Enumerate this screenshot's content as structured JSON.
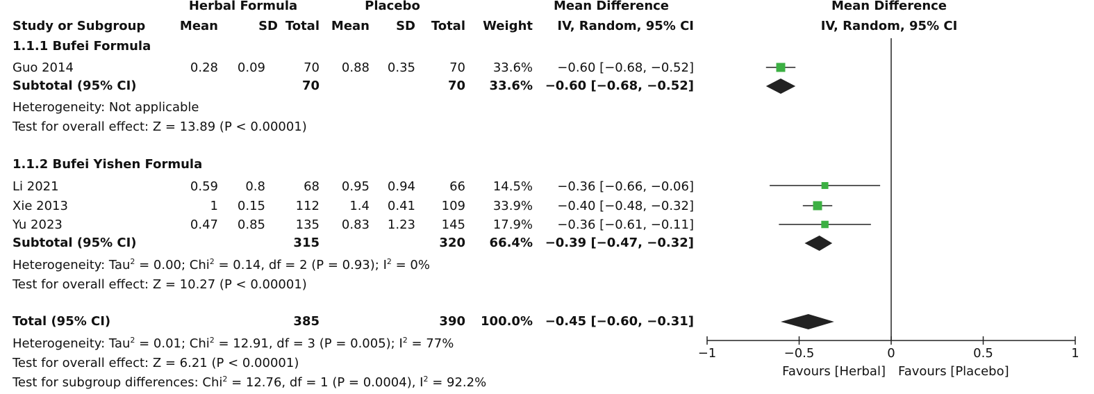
{
  "header": {
    "group_herbal": "Herbal Formula",
    "group_placebo": "Placebo",
    "group_md_table": "Mean Difference",
    "group_md_plot": "Mean Difference",
    "col_study": "Study or Subgroup",
    "col_mean": "Mean",
    "col_sd": "SD",
    "col_total": "Total",
    "col_weight": "Weight",
    "col_method_table": "IV, Random, 95% CI",
    "col_method_plot": "IV, Random, 95% CI"
  },
  "subgroups": [
    {
      "title": "1.1.1 Bufei Formula",
      "studies": [
        {
          "name": "Guo 2014",
          "h_mean": "0.28",
          "h_sd": "0.09",
          "h_total": "70",
          "p_mean": "0.88",
          "p_sd": "0.35",
          "p_total": "70",
          "weight": "33.6%",
          "ci": "−0.60 [−0.68, −0.52]"
        }
      ],
      "subtotal": {
        "label": "Subtotal (95% CI)",
        "h_total": "70",
        "p_total": "70",
        "weight": "33.6%",
        "ci": "−0.60 [−0.68, −0.52]"
      },
      "heterogeneity": "Heterogeneity: Not applicable",
      "overall": "Test for overall effect: Z = 13.89 (P < 0.00001)"
    },
    {
      "title": "1.1.2 Bufei Yishen Formula",
      "studies": [
        {
          "name": "Li 2021",
          "h_mean": "0.59",
          "h_sd": "0.8",
          "h_total": "68",
          "p_mean": "0.95",
          "p_sd": "0.94",
          "p_total": "66",
          "weight": "14.5%",
          "ci": "−0.36 [−0.66, −0.06]"
        },
        {
          "name": "Xie 2013",
          "h_mean": "1",
          "h_sd": "0.15",
          "h_total": "112",
          "p_mean": "1.4",
          "p_sd": "0.41",
          "p_total": "109",
          "weight": "33.9%",
          "ci": "−0.40 [−0.48, −0.32]"
        },
        {
          "name": "Yu 2023",
          "h_mean": "0.47",
          "h_sd": "0.85",
          "h_total": "135",
          "p_mean": "0.83",
          "p_sd": "1.23",
          "p_total": "145",
          "weight": "17.9%",
          "ci": "−0.36 [−0.61, −0.11]"
        }
      ],
      "subtotal": {
        "label": "Subtotal (95% CI)",
        "h_total": "315",
        "p_total": "320",
        "weight": "66.4%",
        "ci": "−0.39 [−0.47, −0.32]"
      },
      "heterogeneity": {
        "pre": "Heterogeneity: Tau",
        "sup1": "2",
        "mid": " = 0.00; Chi",
        "sup2": "2",
        "post": " = 0.14, df = 2 (P = 0.93); I",
        "sup3": "2",
        "end": " = 0%"
      },
      "overall": "Test for overall effect: Z = 10.27 (P < 0.00001)"
    }
  ],
  "total": {
    "label": "Total (95% CI)",
    "h_total": "385",
    "p_total": "390",
    "weight": "100.0%",
    "ci": "−0.45 [−0.60, −0.31]",
    "heterogeneity": {
      "pre": "Heterogeneity: Tau",
      "sup1": "2",
      "mid": " = 0.01; Chi",
      "sup2": "2",
      "post": " = 12.91, df = 3 (P = 0.005); I",
      "sup3": "2",
      "end": " = 77%"
    },
    "overall": "Test for overall effect: Z = 6.21 (P < 0.00001)",
    "subgroup_diff": {
      "pre": "Test for subgroup differences: Chi",
      "sup1": "2",
      "mid": " = 12.76, df = 1 (P = 0.0004), I",
      "sup2": "2",
      "end": " = 92.2%"
    }
  },
  "chart_data": {
    "type": "forest",
    "xlim": [
      -1,
      1
    ],
    "ticks": [
      "−1",
      "−0.5",
      "0",
      "0.5",
      "1"
    ],
    "tick_values": [
      -1,
      -0.5,
      0,
      0.5,
      1
    ],
    "favours_left": "Favours [Herbal]",
    "favours_right": "Favours [Placebo]",
    "studies": [
      {
        "name": "Guo 2014",
        "md": -0.6,
        "lo": -0.68,
        "hi": -0.52,
        "weight": 33.6
      },
      {
        "name": "Li 2021",
        "md": -0.36,
        "lo": -0.66,
        "hi": -0.06,
        "weight": 14.5
      },
      {
        "name": "Xie 2013",
        "md": -0.4,
        "lo": -0.48,
        "hi": -0.32,
        "weight": 33.9
      },
      {
        "name": "Yu 2023",
        "md": -0.36,
        "lo": -0.61,
        "hi": -0.11,
        "weight": 17.9
      }
    ],
    "diamonds": [
      {
        "name": "Subtotal 1.1.1",
        "md": -0.6,
        "lo": -0.68,
        "hi": -0.52
      },
      {
        "name": "Subtotal 1.1.2",
        "md": -0.39,
        "lo": -0.47,
        "hi": -0.32
      },
      {
        "name": "Total",
        "md": -0.45,
        "lo": -0.6,
        "hi": -0.31
      }
    ],
    "colors": {
      "square": "#3cb043",
      "diamond": "#222222",
      "line": "#222222"
    }
  }
}
